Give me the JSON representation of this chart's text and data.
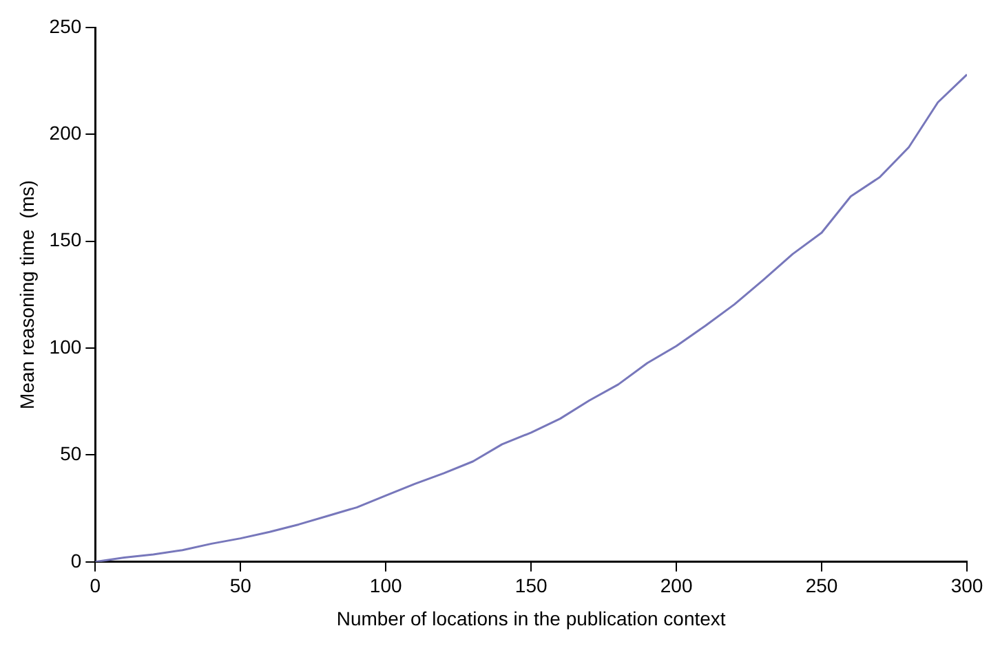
{
  "chart_data": {
    "type": "line",
    "xlabel": "Number of locations in the publication context",
    "ylabel": "Mean reasoning time  (ms)",
    "x": [
      0,
      10,
      20,
      30,
      40,
      50,
      60,
      70,
      80,
      90,
      100,
      110,
      120,
      130,
      140,
      150,
      160,
      170,
      180,
      190,
      200,
      210,
      220,
      230,
      240,
      250,
      260,
      270,
      280,
      290,
      300
    ],
    "series": [
      {
        "color": "#7777bb",
        "values": [
          0,
          2,
          3.5,
          5.5,
          8.5,
          11,
          14,
          17.5,
          21.5,
          25.5,
          31,
          36.5,
          41.5,
          47,
          55,
          60.5,
          67,
          75.5,
          83,
          93,
          101,
          110.5,
          120.5,
          132,
          144,
          154,
          171,
          180,
          194,
          215,
          228
        ]
      }
    ],
    "xlim": [
      0,
      300
    ],
    "xticks": [
      0,
      50,
      100,
      150,
      200,
      250,
      300
    ],
    "ylim": [
      0,
      250
    ],
    "yticks": [
      0,
      50,
      100,
      150,
      200,
      250
    ],
    "grid": false,
    "legend": false,
    "marker": "none",
    "line_style": "solid"
  }
}
